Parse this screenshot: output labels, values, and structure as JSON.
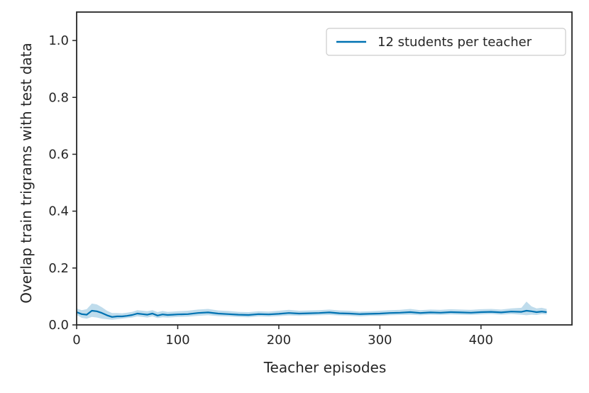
{
  "chart_data": {
    "type": "line",
    "xlabel": "Teacher episodes",
    "ylabel": "Overlap train trigrams with test data",
    "xlim": [
      0,
      490
    ],
    "ylim": [
      0,
      1.1
    ],
    "xticks": [
      0,
      100,
      200,
      300,
      400
    ],
    "yticks": [
      0.0,
      0.2,
      0.4,
      0.6,
      0.8,
      1.0
    ],
    "xtick_labels": [
      "0",
      "100",
      "200",
      "300",
      "400"
    ],
    "ytick_labels": [
      "0.0",
      "0.2",
      "0.4",
      "0.6",
      "0.8",
      "1.0"
    ],
    "grid": false,
    "legend_position": "top-right",
    "colors": {
      "line": "#0072b2",
      "band": "#0072b2",
      "axes": "#262626"
    },
    "series": [
      {
        "name": "12 students per teacher",
        "x": [
          0,
          5,
          10,
          15,
          20,
          25,
          30,
          35,
          40,
          45,
          50,
          55,
          60,
          65,
          70,
          75,
          80,
          85,
          90,
          95,
          100,
          110,
          120,
          130,
          140,
          150,
          160,
          170,
          180,
          190,
          200,
          210,
          220,
          230,
          240,
          250,
          260,
          270,
          280,
          290,
          300,
          310,
          320,
          330,
          340,
          350,
          360,
          370,
          380,
          390,
          400,
          410,
          420,
          430,
          440,
          445,
          450,
          455,
          460,
          465
        ],
        "y": [
          0.045,
          0.038,
          0.036,
          0.05,
          0.048,
          0.042,
          0.034,
          0.028,
          0.03,
          0.03,
          0.032,
          0.035,
          0.04,
          0.038,
          0.036,
          0.04,
          0.033,
          0.037,
          0.035,
          0.036,
          0.037,
          0.038,
          0.042,
          0.044,
          0.04,
          0.038,
          0.036,
          0.035,
          0.038,
          0.037,
          0.039,
          0.042,
          0.04,
          0.041,
          0.042,
          0.044,
          0.041,
          0.04,
          0.038,
          0.039,
          0.04,
          0.042,
          0.043,
          0.045,
          0.042,
          0.044,
          0.043,
          0.045,
          0.044,
          0.043,
          0.045,
          0.046,
          0.044,
          0.047,
          0.046,
          0.05,
          0.048,
          0.045,
          0.047,
          0.045
        ],
        "lower": [
          0.035,
          0.025,
          0.022,
          0.028,
          0.026,
          0.022,
          0.02,
          0.018,
          0.02,
          0.022,
          0.024,
          0.026,
          0.03,
          0.028,
          0.026,
          0.03,
          0.024,
          0.027,
          0.026,
          0.027,
          0.028,
          0.029,
          0.032,
          0.034,
          0.031,
          0.03,
          0.028,
          0.027,
          0.03,
          0.029,
          0.031,
          0.033,
          0.032,
          0.033,
          0.034,
          0.035,
          0.033,
          0.032,
          0.03,
          0.032,
          0.032,
          0.034,
          0.035,
          0.036,
          0.034,
          0.036,
          0.035,
          0.037,
          0.036,
          0.035,
          0.037,
          0.038,
          0.036,
          0.038,
          0.036,
          0.034,
          0.036,
          0.035,
          0.038,
          0.037
        ],
        "upper": [
          0.058,
          0.052,
          0.055,
          0.075,
          0.072,
          0.062,
          0.05,
          0.042,
          0.042,
          0.041,
          0.043,
          0.046,
          0.052,
          0.05,
          0.048,
          0.052,
          0.045,
          0.049,
          0.046,
          0.047,
          0.048,
          0.05,
          0.054,
          0.056,
          0.051,
          0.049,
          0.046,
          0.045,
          0.048,
          0.047,
          0.05,
          0.053,
          0.05,
          0.051,
          0.052,
          0.054,
          0.051,
          0.05,
          0.047,
          0.048,
          0.05,
          0.052,
          0.053,
          0.056,
          0.052,
          0.054,
          0.053,
          0.055,
          0.054,
          0.053,
          0.055,
          0.056,
          0.054,
          0.058,
          0.06,
          0.082,
          0.065,
          0.058,
          0.06,
          0.056
        ]
      }
    ]
  }
}
